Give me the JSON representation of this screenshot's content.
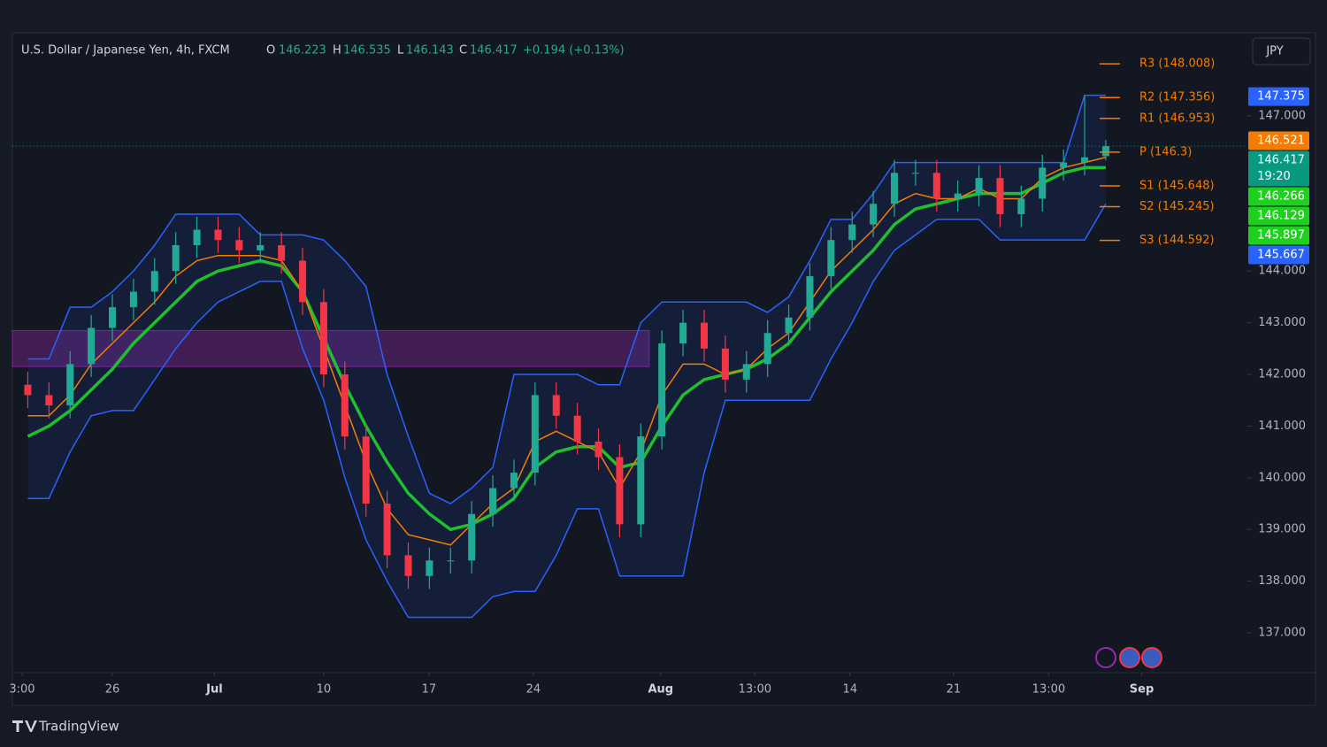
{
  "chart_data": {
    "type": "candlestick",
    "title": "U.S. Dollar / Japanese Yen, 4h, FXCM",
    "ohlc_header": {
      "o_label": "O",
      "o": "146.223",
      "h_label": "H",
      "h": "146.535",
      "l_label": "L",
      "l": "146.143",
      "c_label": "C",
      "c": "146.417",
      "change": "+0.194 (+0.13%)"
    },
    "currency": "JPY",
    "brand": "TradingView",
    "x": [
      -4,
      -3,
      -2,
      -1,
      0,
      1,
      2,
      3,
      4,
      5,
      6,
      7,
      8,
      9,
      10,
      11,
      12,
      13,
      14,
      15,
      16,
      17,
      18,
      19,
      20,
      21,
      22,
      23,
      24,
      25,
      26,
      27,
      28,
      29,
      30,
      31,
      32,
      33,
      34,
      35,
      36,
      37,
      38,
      39,
      40,
      41,
      42,
      43,
      44,
      45,
      46,
      47
    ],
    "open": [
      141.8,
      141.6,
      141.4,
      142.2,
      142.9,
      143.3,
      143.6,
      144.0,
      144.5,
      144.8,
      144.6,
      144.4,
      144.5,
      144.2,
      143.4,
      142.0,
      140.8,
      139.5,
      138.5,
      138.1,
      138.4,
      138.4,
      139.3,
      139.8,
      140.1,
      141.6,
      141.2,
      140.7,
      140.4,
      139.1,
      140.8,
      142.6,
      143.0,
      142.5,
      141.9,
      142.2,
      142.8,
      143.1,
      143.9,
      144.6,
      144.9,
      145.3,
      145.9,
      145.9,
      145.4,
      145.5,
      145.8,
      145.1,
      145.4,
      146.0,
      146.1,
      146.223
    ],
    "high": [
      142.05,
      141.85,
      142.45,
      143.15,
      143.55,
      143.85,
      144.25,
      144.75,
      145.05,
      145.05,
      144.85,
      144.75,
      144.75,
      144.45,
      143.65,
      142.25,
      141.05,
      139.75,
      138.75,
      138.65,
      138.65,
      139.55,
      140.05,
      140.35,
      141.85,
      141.85,
      141.45,
      140.95,
      140.65,
      141.05,
      142.85,
      143.25,
      143.25,
      142.75,
      142.45,
      143.05,
      143.35,
      144.15,
      144.85,
      145.15,
      145.55,
      146.15,
      146.15,
      146.15,
      145.75,
      146.05,
      146.05,
      145.65,
      146.25,
      146.35,
      147.4,
      146.535
    ],
    "low": [
      141.35,
      141.15,
      141.15,
      141.95,
      142.65,
      143.05,
      143.35,
      143.75,
      144.25,
      144.35,
      144.15,
      144.15,
      143.95,
      143.15,
      141.75,
      140.55,
      139.25,
      138.25,
      137.85,
      137.85,
      138.15,
      138.15,
      139.05,
      139.55,
      139.85,
      140.95,
      140.45,
      140.15,
      138.85,
      138.85,
      140.55,
      142.35,
      142.25,
      141.65,
      141.65,
      141.95,
      142.55,
      142.85,
      143.65,
      144.35,
      144.65,
      145.05,
      145.65,
      145.15,
      145.15,
      145.25,
      144.85,
      144.85,
      145.15,
      145.75,
      145.85,
      146.143
    ],
    "close": [
      141.6,
      141.4,
      142.2,
      142.9,
      143.3,
      143.6,
      144.0,
      144.5,
      144.8,
      144.6,
      144.4,
      144.5,
      144.2,
      143.4,
      142.0,
      140.8,
      139.5,
      138.5,
      138.1,
      138.4,
      138.4,
      139.3,
      139.8,
      140.1,
      141.6,
      141.2,
      140.7,
      140.4,
      139.1,
      140.8,
      142.6,
      143.0,
      142.5,
      141.9,
      142.2,
      142.8,
      143.1,
      143.9,
      144.6,
      144.9,
      145.3,
      145.9,
      145.9,
      145.4,
      145.5,
      145.8,
      145.1,
      145.4,
      146.0,
      146.1,
      146.2,
      146.417
    ],
    "up_color": "#22ab94",
    "down_color": "#f23645",
    "lines": [
      {
        "color": "#1fbf2d",
        "values": [
          140.8,
          141.0,
          141.3,
          141.7,
          142.1,
          142.6,
          143.0,
          143.4,
          143.8,
          144.0,
          144.1,
          144.2,
          144.1,
          143.6,
          142.7,
          141.8,
          141.0,
          140.3,
          139.7,
          139.3,
          139.0,
          139.1,
          139.3,
          139.6,
          140.2,
          140.5,
          140.6,
          140.6,
          140.2,
          140.3,
          141.0,
          141.6,
          141.9,
          142.0,
          142.1,
          142.3,
          142.6,
          143.1,
          143.6,
          144.0,
          144.4,
          144.9,
          145.2,
          145.3,
          145.4,
          145.5,
          145.5,
          145.5,
          145.7,
          145.9,
          146.0,
          146.0
        ]
      },
      {
        "color": "#f57c00",
        "values": [
          141.2,
          141.2,
          141.6,
          142.2,
          142.6,
          143.0,
          143.4,
          143.9,
          144.2,
          144.3,
          144.3,
          144.3,
          144.2,
          143.6,
          142.5,
          141.4,
          140.3,
          139.4,
          138.9,
          138.8,
          138.7,
          139.1,
          139.5,
          139.8,
          140.7,
          140.9,
          140.7,
          140.5,
          139.8,
          140.5,
          141.6,
          142.2,
          142.2,
          142.0,
          142.1,
          142.5,
          142.8,
          143.4,
          144.0,
          144.4,
          144.8,
          145.3,
          145.5,
          145.4,
          145.4,
          145.6,
          145.4,
          145.4,
          145.8,
          146.0,
          146.1,
          146.2
        ]
      }
    ],
    "channel": {
      "color": "#2962ff",
      "upper": [
        142.3,
        142.3,
        143.3,
        143.3,
        143.6,
        144.0,
        144.5,
        145.1,
        145.1,
        145.1,
        145.1,
        144.7,
        144.7,
        144.7,
        144.6,
        144.2,
        143.7,
        142.0,
        140.8,
        139.7,
        139.5,
        139.8,
        140.2,
        142.0,
        142.0,
        142.0,
        142.0,
        141.8,
        141.8,
        143.0,
        143.4,
        143.4,
        143.4,
        143.4,
        143.4,
        143.2,
        143.5,
        144.2,
        145.0,
        145.0,
        145.5,
        146.1,
        146.1,
        146.1,
        146.1,
        146.1,
        146.1,
        146.1,
        146.1,
        146.1,
        147.4,
        147.4
      ],
      "lower": [
        139.6,
        139.6,
        140.5,
        141.2,
        141.3,
        141.3,
        141.9,
        142.5,
        143.0,
        143.4,
        143.6,
        143.8,
        143.8,
        142.5,
        141.5,
        140.0,
        138.8,
        138.0,
        137.3,
        137.3,
        137.3,
        137.3,
        137.7,
        137.8,
        137.8,
        138.5,
        139.4,
        139.4,
        138.1,
        138.1,
        138.1,
        138.1,
        140.1,
        141.5,
        141.5,
        141.5,
        141.5,
        141.5,
        142.3,
        143.0,
        143.8,
        144.4,
        144.7,
        145.0,
        145.0,
        145.0,
        144.6,
        144.6,
        144.6,
        144.6,
        144.6,
        145.3
      ]
    },
    "zone": {
      "color": "#9c27b0",
      "from": 142.15,
      "to": 142.85,
      "x": [
        -4.73,
        25.4
      ]
    },
    "pivots": [
      {
        "label": "R3 (148.008)",
        "value": 148.008
      },
      {
        "label": "R2 (147.356)",
        "value": 147.356
      },
      {
        "label": "R1 (146.953)",
        "value": 146.953
      },
      {
        "label": "P (146.3)",
        "value": 146.3
      },
      {
        "label": "S1 (145.648)",
        "value": 145.648
      },
      {
        "label": "S2 (145.245)",
        "value": 145.245
      },
      {
        "label": "S3 (144.592)",
        "value": 144.592
      }
    ],
    "pivot_color": "#f57c00",
    "price_badges": [
      {
        "label": "147.375",
        "value": 147.375,
        "color": "#2962ff"
      },
      {
        "label": "146.521",
        "value": 146.521,
        "color": "#f57c00"
      },
      {
        "label": "146.417",
        "value": 146.417,
        "color": "#089981",
        "sub": "19:20"
      },
      {
        "label": "146.266",
        "value": 146.266,
        "color": "#1fd11f"
      },
      {
        "label": "146.129",
        "value": 146.129,
        "color": "#1fd11f"
      },
      {
        "label": "145.897",
        "value": 145.897,
        "color": "#1fd11f"
      },
      {
        "label": "145.667",
        "value": 145.667,
        "color": "#2962ff"
      }
    ],
    "ylim": [
      136.23,
      148.61
    ],
    "yticks": [
      {
        "value": 137,
        "label": "137.000"
      },
      {
        "value": 138,
        "label": "138.000"
      },
      {
        "value": 139,
        "label": "139.000"
      },
      {
        "value": 140,
        "label": "140.000"
      },
      {
        "value": 141,
        "label": "141.000"
      },
      {
        "value": 142,
        "label": "142.000"
      },
      {
        "value": 143,
        "label": "143.000"
      },
      {
        "value": 144,
        "label": "144.000"
      },
      {
        "value": 147,
        "label": "147.000"
      }
    ],
    "xlim": [
      -4.73,
      53.7
    ],
    "xticks": [
      {
        "value": -4.27,
        "label": "3:00"
      },
      {
        "value": 0,
        "label": "26"
      },
      {
        "value": 4.83,
        "label": "Jul"
      },
      {
        "value": 10,
        "label": "10"
      },
      {
        "value": 14.98,
        "label": "17"
      },
      {
        "value": 19.92,
        "label": "24"
      },
      {
        "value": 25.94,
        "label": "Aug"
      },
      {
        "value": 30.4,
        "label": "13:00"
      },
      {
        "value": 34.9,
        "label": "14"
      },
      {
        "value": 39.8,
        "label": "21"
      },
      {
        "value": 44.3,
        "label": "13:00"
      },
      {
        "value": 48.7,
        "label": "Sep"
      }
    ],
    "bold_xticks": [
      "Jul",
      "Aug",
      "Sep"
    ]
  }
}
